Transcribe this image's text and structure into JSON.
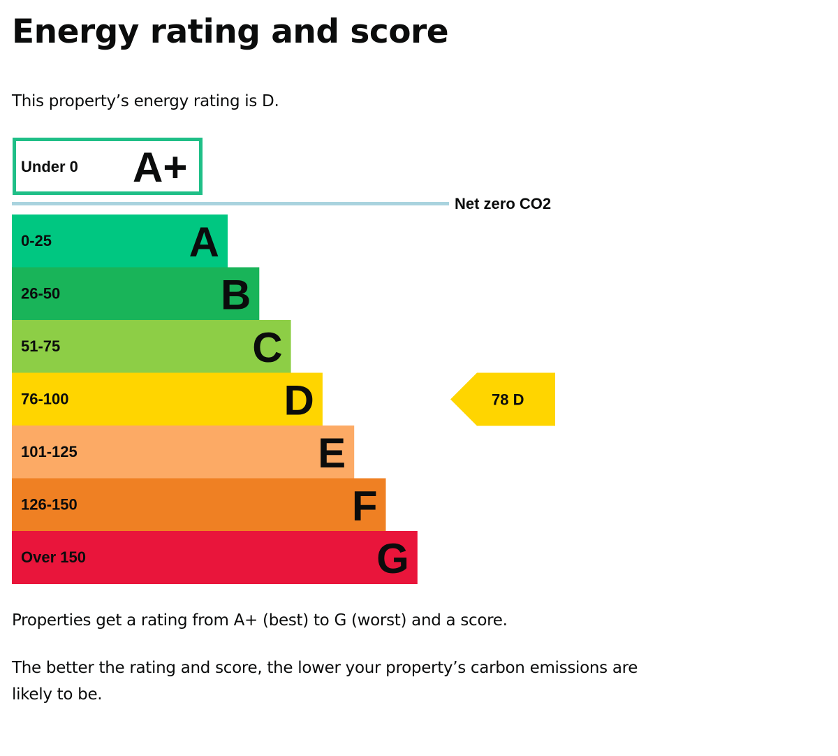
{
  "page": {
    "title": "Energy rating and score",
    "intro": "This property’s energy rating is D.",
    "para1": "Properties get a rating from A+ (best) to G (worst) and a score.",
    "para2": "The better the rating and score, the lower your property’s carbon emissions are likely to be."
  },
  "chart_data": {
    "type": "bar",
    "top_band": {
      "range": "Under 0",
      "letter": "A+",
      "color": "#1fbf87"
    },
    "net_zero_label": "Net zero CO2",
    "net_zero_line_color": "#a9d3de",
    "bands": [
      {
        "range": "0-25",
        "letter": "A",
        "color": "#00c781"
      },
      {
        "range": "26-50",
        "letter": "B",
        "color": "#19b459"
      },
      {
        "range": "51-75",
        "letter": "C",
        "color": "#8dce46"
      },
      {
        "range": "76-100",
        "letter": "D",
        "color": "#ffd500"
      },
      {
        "range": "101-125",
        "letter": "E",
        "color": "#fcaa65"
      },
      {
        "range": "126-150",
        "letter": "F",
        "color": "#ef8023"
      },
      {
        "range": "Over 150",
        "letter": "G",
        "color": "#e9153b"
      }
    ],
    "current": {
      "score": 78,
      "rating": "D",
      "label": "78  D",
      "color": "#ffd500"
    }
  }
}
